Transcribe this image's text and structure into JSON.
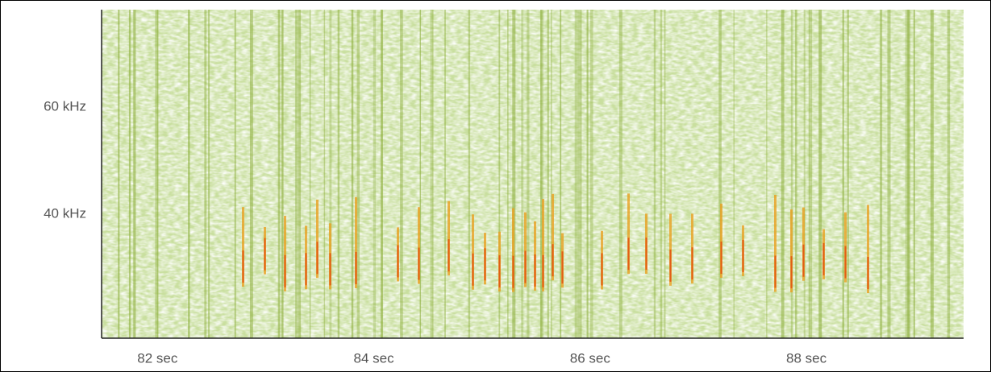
{
  "chart_data": {
    "type": "spectrogram",
    "xlim": [
      81.67,
      89.64
    ],
    "xticks": [
      {
        "value": 82,
        "label": "82  sec"
      },
      {
        "value": 84,
        "label": "84  sec"
      },
      {
        "value": 86,
        "label": "86  sec"
      },
      {
        "value": 88,
        "label": "88  sec"
      }
    ],
    "ylim": [
      16.8,
      78.2
    ],
    "yticks": [
      {
        "value": 40,
        "label": "40 kHz"
      },
      {
        "value": 60,
        "label": "60 kHz"
      }
    ]
  }
}
